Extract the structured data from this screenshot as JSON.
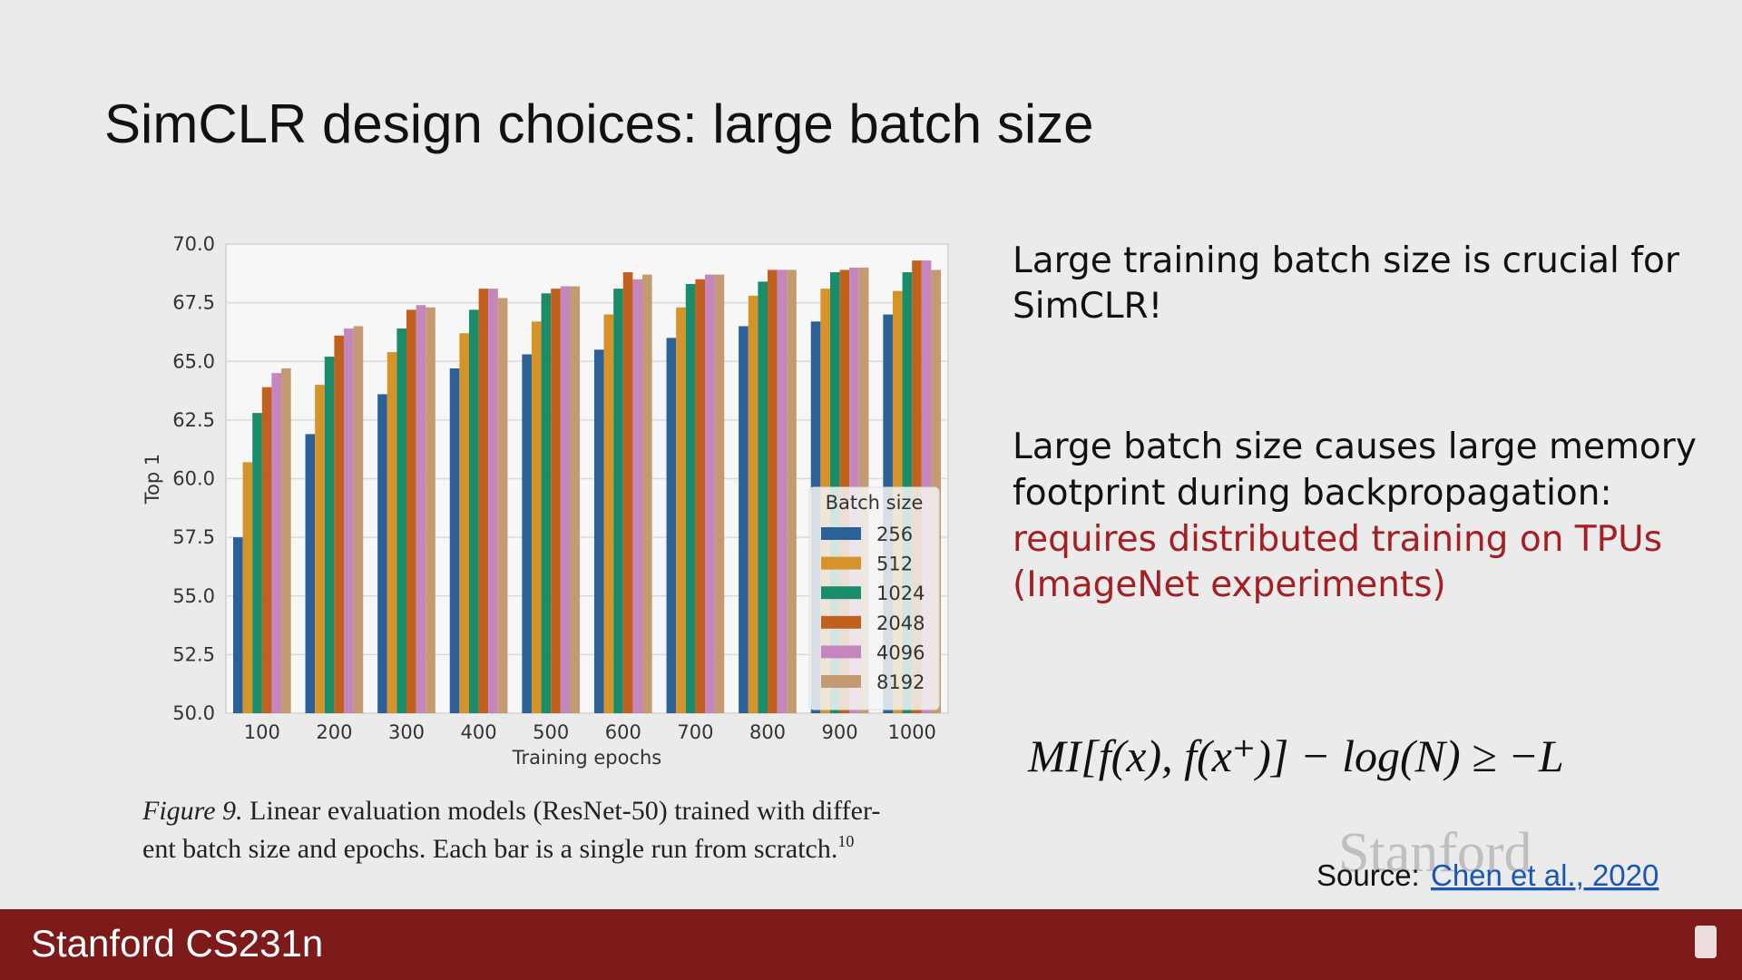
{
  "slide": {
    "title": "SimCLR design choices: large batch size",
    "paragraph1": [
      "Large training batch size is crucial for",
      "SimCLR!"
    ],
    "paragraph2": [
      "Large batch size causes large memory",
      "footprint during backpropagation:"
    ],
    "paragraph2_highlight": [
      "requires distributed training on TPUs",
      "(ImageNet experiments)"
    ],
    "formula": "MI[f(x), f(x⁺)] − log(N) ≥ −L",
    "caption": {
      "figure": "Figure 9.",
      "line1": "Linear evaluation models (ResNet-50) trained with differ-",
      "line2": "ent batch size and epochs. Each bar is a single run from scratch.",
      "superscript": "10"
    },
    "watermark": "Stanford",
    "source_label": "Source:",
    "source_link": "Chen et al., 2020",
    "footer": "Stanford CS231n"
  },
  "chart_data": {
    "type": "bar",
    "x_label": "Training epochs",
    "y_label": "Top 1",
    "legend_title": "Batch size",
    "legend": "lower right",
    "grid": true,
    "categories": [
      "100",
      "200",
      "300",
      "400",
      "500",
      "600",
      "700",
      "800",
      "900",
      "1000"
    ],
    "series": [
      {
        "name": "256",
        "color": "#2b6198",
        "values": [
          57.5,
          61.9,
          63.6,
          64.7,
          65.3,
          65.5,
          66.0,
          66.5,
          66.7,
          67.0
        ]
      },
      {
        "name": "512",
        "color": "#d6932a",
        "values": [
          60.7,
          64.0,
          65.4,
          66.2,
          66.7,
          67.0,
          67.3,
          67.8,
          68.1,
          68.0
        ]
      },
      {
        "name": "1024",
        "color": "#1a8c6a",
        "values": [
          62.8,
          65.2,
          66.4,
          67.2,
          67.9,
          68.1,
          68.3,
          68.4,
          68.8,
          68.8
        ]
      },
      {
        "name": "2048",
        "color": "#c2611d",
        "values": [
          63.9,
          66.1,
          67.2,
          68.1,
          68.1,
          68.8,
          68.5,
          68.9,
          68.9,
          69.3
        ]
      },
      {
        "name": "4096",
        "color": "#c486bd",
        "values": [
          64.5,
          66.4,
          67.4,
          68.1,
          68.2,
          68.5,
          68.7,
          68.9,
          69.0,
          69.3
        ]
      },
      {
        "name": "8192",
        "color": "#c39a72",
        "values": [
          64.7,
          66.5,
          67.3,
          67.7,
          68.2,
          68.7,
          68.7,
          68.9,
          69.0,
          68.9
        ]
      }
    ],
    "ylim": [
      50,
      70
    ],
    "yticks": [
      {
        "value": 50,
        "label": "50.0"
      },
      {
        "value": 52.5,
        "label": "52.5"
      },
      {
        "value": 55,
        "label": "55.0"
      },
      {
        "value": 57.5,
        "label": "57.5"
      },
      {
        "value": 60,
        "label": "60.0"
      },
      {
        "value": 62.5,
        "label": "62.5"
      },
      {
        "value": 65,
        "label": "65.0"
      },
      {
        "value": 67.5,
        "label": "67.5"
      },
      {
        "value": 70,
        "label": "70.0"
      }
    ]
  }
}
